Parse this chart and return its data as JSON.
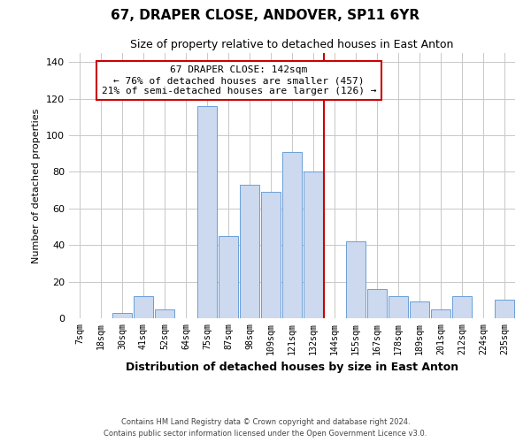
{
  "title": "67, DRAPER CLOSE, ANDOVER, SP11 6YR",
  "subtitle": "Size of property relative to detached houses in East Anton",
  "xlabel": "Distribution of detached houses by size in East Anton",
  "ylabel": "Number of detached properties",
  "bar_color": "#ccd9ef",
  "bar_edge_color": "#6a9fd8",
  "categories": [
    "7sqm",
    "18sqm",
    "30sqm",
    "41sqm",
    "52sqm",
    "64sqm",
    "75sqm",
    "87sqm",
    "98sqm",
    "109sqm",
    "121sqm",
    "132sqm",
    "144sqm",
    "155sqm",
    "167sqm",
    "178sqm",
    "189sqm",
    "201sqm",
    "212sqm",
    "224sqm",
    "235sqm"
  ],
  "values": [
    0,
    0,
    3,
    12,
    5,
    0,
    116,
    45,
    73,
    69,
    91,
    80,
    0,
    42,
    16,
    12,
    9,
    5,
    12,
    0,
    10
  ],
  "property_line_color": "#cc0000",
  "annotation_text": "67 DRAPER CLOSE: 142sqm\n← 76% of detached houses are smaller (457)\n21% of semi-detached houses are larger (126) →",
  "annotation_box_color": "#ffffff",
  "annotation_box_edge_color": "#cc0000",
  "ylim": [
    0,
    145
  ],
  "yticks": [
    0,
    20,
    40,
    60,
    80,
    100,
    120,
    140
  ],
  "footer_line1": "Contains HM Land Registry data © Crown copyright and database right 2024.",
  "footer_line2": "Contains public sector information licensed under the Open Government Licence v3.0.",
  "background_color": "#ffffff",
  "grid_color": "#c8c8c8"
}
